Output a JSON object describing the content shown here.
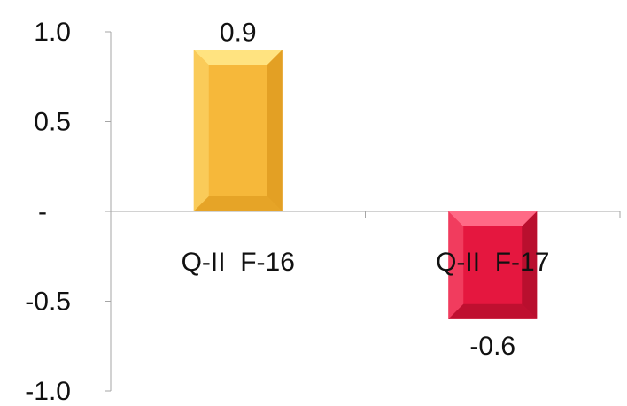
{
  "chart_data": {
    "type": "bar",
    "title": "",
    "xlabel": "",
    "ylabel": "",
    "categories": [
      "Q-II  F-16",
      "Q-II  F-17"
    ],
    "values": [
      0.9,
      -0.6
    ],
    "data_labels": [
      "0.9",
      "-0.6"
    ],
    "ylim": [
      -1.0,
      1.0
    ],
    "yticks": [
      {
        "value": 1.0,
        "label": "1.0"
      },
      {
        "value": 0.5,
        "label": "0.5"
      },
      {
        "value": 0.0,
        "label": "-"
      },
      {
        "value": -0.5,
        "label": "-0.5"
      },
      {
        "value": -1.0,
        "label": "-1.0"
      }
    ],
    "grid": false,
    "legend": "none",
    "colors": {
      "positive": {
        "base": "#F6B83A",
        "light": "#FFE380",
        "dark": "#E3A024"
      },
      "negative": {
        "base": "#E5173F",
        "light": "#FF6A86",
        "dark": "#B90F2E"
      },
      "axis": "#A6A6A6"
    }
  }
}
